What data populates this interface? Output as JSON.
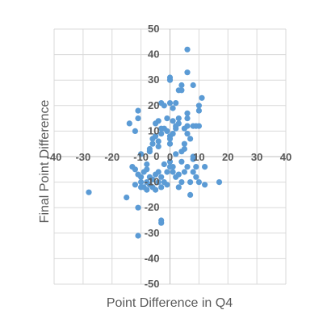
{
  "chart_data": {
    "type": "scatter",
    "title": "",
    "xlabel": "Point Difference in Q4",
    "ylabel": "Final Point Difference",
    "xlim": [
      -40,
      40
    ],
    "ylim": [
      -50,
      50
    ],
    "x_ticks": [
      "-40",
      "-30",
      "-20",
      "-10",
      "0",
      "10",
      "20",
      "30",
      "40"
    ],
    "y_ticks": [
      "50",
      "40",
      "30",
      "20",
      "10",
      "0",
      "-10",
      "-20",
      "-30",
      "-40",
      "-50"
    ],
    "grid": true,
    "legend": "none",
    "marker_color": "#5B9BD5",
    "series": [
      {
        "points": [
          [
            -28,
            -14
          ],
          [
            -15,
            -16
          ],
          [
            -11,
            -20
          ],
          [
            -11,
            -31
          ],
          [
            -3,
            -25
          ],
          [
            -3,
            -26
          ],
          [
            7,
            -15
          ],
          [
            17,
            -10
          ],
          [
            12,
            -4
          ],
          [
            9,
            -4
          ],
          [
            7,
            -10
          ],
          [
            4,
            -10
          ],
          [
            6,
            -4
          ],
          [
            8,
            -1
          ],
          [
            10,
            12
          ],
          [
            11,
            23
          ],
          [
            10,
            20
          ],
          [
            10,
            18
          ],
          [
            9,
            12
          ],
          [
            8,
            12
          ],
          [
            8,
            28
          ],
          [
            6,
            42
          ],
          [
            6,
            33
          ],
          [
            6,
            17
          ],
          [
            6,
            15
          ],
          [
            6,
            12
          ],
          [
            6,
            9
          ],
          [
            5,
            11
          ],
          [
            5,
            5
          ],
          [
            5,
            3
          ],
          [
            4,
            28
          ],
          [
            4,
            26
          ],
          [
            3,
            26
          ],
          [
            3,
            13
          ],
          [
            2,
            21
          ],
          [
            2,
            12
          ],
          [
            1,
            19
          ],
          [
            1,
            14
          ],
          [
            0,
            30
          ],
          [
            0,
            31
          ],
          [
            0,
            21
          ],
          [
            0,
            8
          ],
          [
            0,
            7
          ],
          [
            0,
            5
          ],
          [
            0,
            -4
          ],
          [
            0,
            -2
          ],
          [
            -1,
            10
          ],
          [
            -1,
            15
          ],
          [
            -2,
            11
          ],
          [
            -2,
            20
          ],
          [
            -3,
            21
          ],
          [
            -3,
            11
          ],
          [
            -3,
            9
          ],
          [
            -4,
            6
          ],
          [
            -4,
            4
          ],
          [
            -4,
            14
          ],
          [
            -5,
            13
          ],
          [
            -5,
            8
          ],
          [
            -6,
            7
          ],
          [
            -6,
            5
          ],
          [
            -7,
            3
          ],
          [
            -7,
            2
          ],
          [
            -8,
            -3
          ],
          [
            -8,
            -5
          ],
          [
            -9,
            -6
          ],
          [
            -10,
            -8
          ],
          [
            -10,
            -10
          ],
          [
            -10,
            -12
          ],
          [
            -11,
            -7
          ],
          [
            -12,
            -5
          ],
          [
            -12,
            -11
          ],
          [
            -13,
            -4
          ],
          [
            -14,
            13
          ],
          [
            -11,
            15
          ],
          [
            -11,
            18
          ],
          [
            -12,
            10
          ],
          [
            -10,
            1
          ],
          [
            -9,
            -12
          ],
          [
            -8,
            -13
          ],
          [
            -8,
            -10
          ],
          [
            -7,
            -11
          ],
          [
            -7,
            -8
          ],
          [
            -6,
            -12
          ],
          [
            -6,
            -9
          ],
          [
            -5,
            -7
          ],
          [
            -5,
            -13
          ],
          [
            -4,
            -10
          ],
          [
            -4,
            -6
          ],
          [
            -3,
            -12
          ],
          [
            -3,
            -8
          ],
          [
            -2,
            -10
          ],
          [
            -2,
            -3
          ],
          [
            -1,
            -6
          ],
          [
            -1,
            -11
          ],
          [
            1,
            -4
          ],
          [
            1,
            -6
          ],
          [
            2,
            -8
          ],
          [
            2,
            1
          ],
          [
            3,
            -12
          ],
          [
            3,
            -7
          ],
          [
            4,
            -2
          ],
          [
            4,
            2
          ],
          [
            5,
            -6
          ],
          [
            7,
            7
          ],
          [
            8,
            0
          ],
          [
            8,
            -6
          ],
          [
            9,
            -8
          ],
          [
            10,
            -10
          ],
          [
            12,
            -11
          ],
          [
            3,
            15
          ],
          [
            1,
            9
          ],
          [
            2,
            11
          ]
        ]
      }
    ]
  }
}
